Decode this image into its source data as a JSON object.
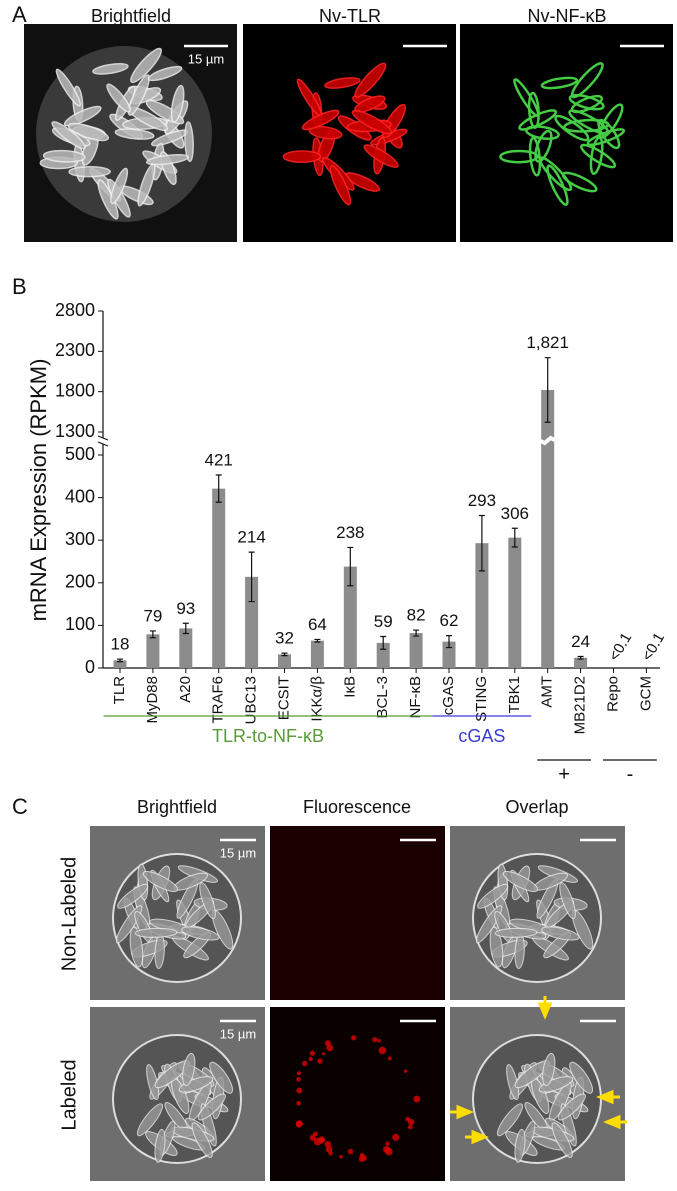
{
  "panel_a": {
    "letter": "A",
    "titles": [
      "Brightfield",
      "Nv-TLR",
      "Nv-NF-κB"
    ],
    "scale_bar_label": "15 µm"
  },
  "panel_b": {
    "letter": "B"
  },
  "chart_data": {
    "type": "bar",
    "y_label": "mRNA Expression (RPKM)",
    "categories": [
      "TLR",
      "MyD88",
      "A20",
      "TRAF6",
      "UBC13",
      "ECSIT",
      "IKKα/β",
      "IκB",
      "BCL-3",
      "NF-κB",
      "cGAS",
      "STING",
      "TBK1",
      "AMT",
      "MB21D2",
      "Repo",
      "GCM"
    ],
    "values": [
      18,
      79,
      93,
      421,
      214,
      32,
      64,
      238,
      59,
      82,
      62,
      293,
      306,
      1821,
      24,
      null,
      null
    ],
    "value_labels": [
      "18",
      "79",
      "93",
      "421",
      "214",
      "32",
      "64",
      "238",
      "59",
      "82",
      "62",
      "293",
      "306",
      "1,821",
      "24",
      "<0.1",
      "<0.1"
    ],
    "errors": [
      3,
      8,
      12,
      32,
      58,
      3,
      3,
      45,
      15,
      7,
      14,
      65,
      22,
      400,
      3,
      null,
      null
    ],
    "color": "#8c8c8c",
    "ylim": [
      0,
      500
    ],
    "yticks": [
      0,
      100,
      200,
      300,
      400,
      500
    ],
    "upper_ylim": [
      1300,
      2800
    ],
    "upper_yticks": [
      1300,
      1800,
      2300,
      2800
    ],
    "groups": [
      {
        "label": "TLR-to-NF-κB",
        "color": "#5a9a3a",
        "from": "TLR",
        "to": "NF-κB"
      },
      {
        "label": "cGAS",
        "color": "#3a3ad8",
        "from": "cGAS",
        "to": "TBK1"
      },
      {
        "label": "+",
        "color": "#111111",
        "from": "AMT",
        "to": "MB21D2"
      },
      {
        "label": "-",
        "color": "#111111",
        "from": "Repo",
        "to": "GCM"
      }
    ]
  },
  "panel_c": {
    "letter": "C",
    "titles": [
      "Brightfield",
      "Fluorescence",
      "Overlap"
    ],
    "rows": [
      "Non-Labeled",
      "Labeled"
    ],
    "scale_bar_label": "15 µm"
  }
}
